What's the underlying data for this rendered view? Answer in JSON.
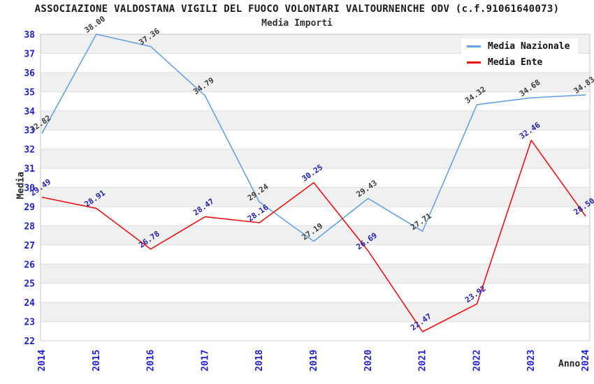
{
  "title": "ASSOCIAZIONE VALDOSTANA VIGILI DEL FUOCO VOLONTARI VALTOURNENCHE ODV (c.f.91061640073)",
  "subtitle": "Media Importi",
  "chart_data": {
    "type": "line",
    "x": [
      "2014",
      "2015",
      "2016",
      "2017",
      "2018",
      "2019",
      "2020",
      "2021",
      "2022",
      "2023",
      "2024"
    ],
    "series": [
      {
        "name": "Media Nazionale",
        "color": "#66a2e3",
        "label_color": "#3c3c3c",
        "values": [
          32.82,
          38.0,
          37.36,
          34.79,
          29.24,
          27.19,
          29.43,
          27.71,
          34.32,
          34.68,
          34.83
        ]
      },
      {
        "name": "Media Ente",
        "color": "#ee1111",
        "label_color": "#2222b2",
        "values": [
          29.49,
          28.91,
          26.78,
          28.47,
          28.16,
          30.25,
          26.69,
          22.47,
          23.92,
          32.46,
          28.5
        ]
      }
    ],
    "xlabel": "Anno",
    "ylabel": "Media",
    "ylim": [
      22,
      38
    ],
    "ytick_step": 1,
    "grid": "horizontal-bands-alternating",
    "legend_position": "top-right",
    "colors": {
      "band": "#f0f0f0",
      "gridline": "#dfdfdf",
      "frame": "#c8c8c8",
      "tick_label": "#2020d0"
    }
  }
}
